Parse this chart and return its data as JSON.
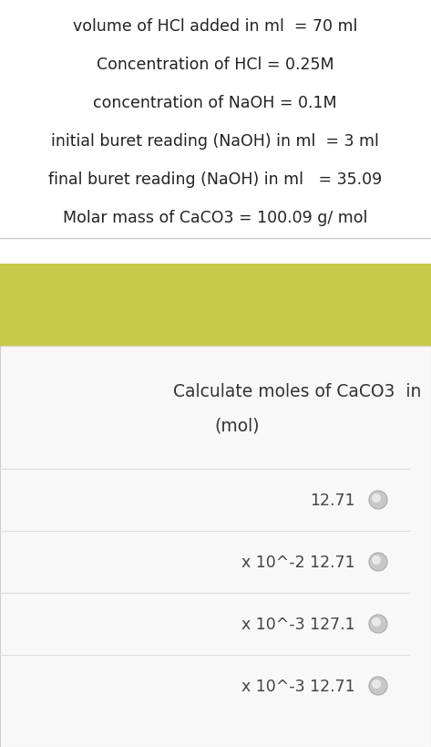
{
  "background_color": "#ffffff",
  "info_lines": [
    "volume of HCl added in ml  = 70 ml",
    "Concentration of HCl = 0.25M",
    "concentration of NaOH = 0.1M",
    "initial buret reading (NaOH) in ml  = 3 ml",
    "final buret reading (NaOH) in ml   = 35.09",
    "Molar mass of CaCO3 = 100.09 g/ mol"
  ],
  "highlight_color": "#c8c84a",
  "question_line1": "Calculate moles of CaCO3  in",
  "question_line2": "(mol)",
  "question_box_color": "#f8f8f8",
  "options": [
    {
      "label": "12.71",
      "prefix": ""
    },
    {
      "label": "12.71",
      "prefix": "x 10^-2 "
    },
    {
      "label": "127.1",
      "prefix": "x 10^-3 "
    },
    {
      "label": "12.71",
      "prefix": "x 10^-3 "
    }
  ],
  "option_text_color": "#444444",
  "separator_color": "#dddddd",
  "info_fontsize": 12.5,
  "question_fontsize": 13.5,
  "option_fontsize": 12.5
}
